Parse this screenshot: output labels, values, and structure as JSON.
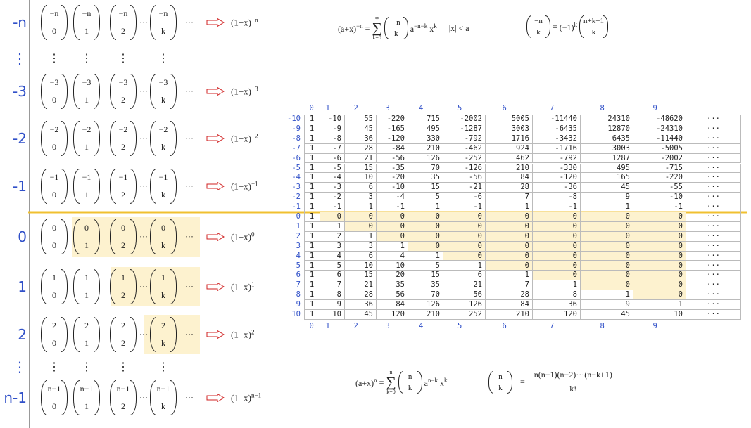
{
  "ellipsis": "···",
  "rows": [
    {
      "label": "-n",
      "entries": [
        {
          "top": "−n",
          "bottom": "0"
        },
        {
          "top": "−n",
          "bottom": "1"
        },
        {
          "top": "−n",
          "bottom": "2"
        },
        {
          "top": "−n",
          "bottom": "k"
        }
      ],
      "result": "(1+x)",
      "power": "−n"
    },
    {
      "label": "⋮"
    },
    {
      "label": "-3",
      "entries": [
        {
          "top": "−3",
          "bottom": "0"
        },
        {
          "top": "−3",
          "bottom": "1"
        },
        {
          "top": "−3",
          "bottom": "2"
        },
        {
          "top": "−3",
          "bottom": "k"
        }
      ],
      "result": "(1+x)",
      "power": "−3"
    },
    {
      "label": "-2",
      "entries": [
        {
          "top": "−2",
          "bottom": "0"
        },
        {
          "top": "−2",
          "bottom": "1"
        },
        {
          "top": "−2",
          "bottom": "2"
        },
        {
          "top": "−2",
          "bottom": "k"
        }
      ],
      "result": "(1+x)",
      "power": "−2"
    },
    {
      "label": "-1",
      "entries": [
        {
          "top": "−1",
          "bottom": "0"
        },
        {
          "top": "−1",
          "bottom": "1"
        },
        {
          "top": "−1",
          "bottom": "2"
        },
        {
          "top": "−1",
          "bottom": "k"
        }
      ],
      "result": "(1+x)",
      "power": "−1"
    },
    {
      "label": "0",
      "entries": [
        {
          "top": "0",
          "bottom": "0"
        },
        {
          "top": "0",
          "bottom": "1"
        },
        {
          "top": "0",
          "bottom": "2"
        },
        {
          "top": "0",
          "bottom": "k"
        }
      ],
      "result": "(1+x)",
      "power": "0"
    },
    {
      "label": "1",
      "entries": [
        {
          "top": "1",
          "bottom": "0"
        },
        {
          "top": "1",
          "bottom": "1"
        },
        {
          "top": "1",
          "bottom": "2"
        },
        {
          "top": "1",
          "bottom": "k"
        }
      ],
      "result": "(1+x)",
      "power": "1"
    },
    {
      "label": "2",
      "entries": [
        {
          "top": "2",
          "bottom": "0"
        },
        {
          "top": "2",
          "bottom": "1"
        },
        {
          "top": "2",
          "bottom": "2"
        },
        {
          "top": "2",
          "bottom": "k"
        }
      ],
      "result": "(1+x)",
      "power": "2"
    },
    {
      "label": "⋮"
    },
    {
      "label": "n-1",
      "entries": [
        {
          "top": "n−1",
          "bottom": "0"
        },
        {
          "top": "n−1",
          "bottom": "1"
        },
        {
          "top": "n−1",
          "bottom": "2"
        },
        {
          "top": "n−1",
          "bottom": "k"
        }
      ],
      "result": "(1+x)",
      "power": "n−1"
    }
  ],
  "neg_sum": {
    "lhs": "(a+x)",
    "lhs_pow": "−n",
    "eq": "=",
    "upper": "∞",
    "sigma": "∑",
    "lower": "k=0",
    "top": "−n",
    "bottom": "k",
    "a": "a",
    "a_pow": "−n−k",
    "x": "x",
    "x_pow": "k",
    "cond": "|x| < a"
  },
  "neg_binom": {
    "top": "−n",
    "bottom": "k",
    "eq": "=",
    "sign": "(−1)",
    "sign_pow": "k",
    "top2": "n+k−1",
    "bottom2": "k"
  },
  "pos_sum": {
    "lhs": "(a+x)",
    "lhs_pow": "n",
    "eq": "=",
    "upper": "n",
    "sigma": "∑",
    "lower": "k=0",
    "top": "n",
    "bottom": "k",
    "a": "a",
    "a_pow": "n−k",
    "x": "x",
    "x_pow": "k"
  },
  "pos_binom": {
    "top": "n",
    "bottom": "k",
    "eq": "=",
    "num": "n(n−1)(n−2)···(n−k+1)",
    "den": "k!"
  },
  "table": {
    "columns": [
      0,
      1,
      2,
      3,
      4,
      5,
      6,
      7,
      8,
      9
    ],
    "more": "···",
    "rows": [
      {
        "label": -10,
        "cells": [
          1,
          -10,
          55,
          -220,
          715,
          -2002,
          5005,
          -11440,
          24310,
          -48620
        ]
      },
      {
        "label": -9,
        "cells": [
          1,
          -9,
          45,
          -165,
          495,
          -1287,
          3003,
          -6435,
          12870,
          -24310
        ]
      },
      {
        "label": -8,
        "cells": [
          1,
          -8,
          36,
          -120,
          330,
          -792,
          1716,
          -3432,
          6435,
          -11440
        ]
      },
      {
        "label": -7,
        "cells": [
          1,
          -7,
          28,
          -84,
          210,
          -462,
          924,
          -1716,
          3003,
          -5005
        ]
      },
      {
        "label": -6,
        "cells": [
          1,
          -6,
          21,
          -56,
          126,
          -252,
          462,
          -792,
          1287,
          -2002
        ]
      },
      {
        "label": -5,
        "cells": [
          1,
          -5,
          15,
          -35,
          70,
          -126,
          210,
          -330,
          495,
          -715
        ]
      },
      {
        "label": -4,
        "cells": [
          1,
          -4,
          10,
          -20,
          35,
          -56,
          84,
          -120,
          165,
          -220
        ]
      },
      {
        "label": -3,
        "cells": [
          1,
          -3,
          6,
          -10,
          15,
          -21,
          28,
          -36,
          45,
          -55
        ]
      },
      {
        "label": -2,
        "cells": [
          1,
          -2,
          3,
          -4,
          5,
          -6,
          7,
          -8,
          9,
          -10
        ]
      },
      {
        "label": -1,
        "cells": [
          1,
          -1,
          1,
          -1,
          1,
          -1,
          1,
          -1,
          1,
          -1
        ]
      },
      {
        "label": 0,
        "cells": [
          1,
          0,
          0,
          0,
          0,
          0,
          0,
          0,
          0,
          0
        ]
      },
      {
        "label": 1,
        "cells": [
          1,
          1,
          0,
          0,
          0,
          0,
          0,
          0,
          0,
          0
        ]
      },
      {
        "label": 2,
        "cells": [
          1,
          2,
          1,
          0,
          0,
          0,
          0,
          0,
          0,
          0
        ]
      },
      {
        "label": 3,
        "cells": [
          1,
          3,
          3,
          1,
          0,
          0,
          0,
          0,
          0,
          0
        ]
      },
      {
        "label": 4,
        "cells": [
          1,
          4,
          6,
          4,
          1,
          0,
          0,
          0,
          0,
          0
        ]
      },
      {
        "label": 5,
        "cells": [
          1,
          5,
          10,
          10,
          5,
          1,
          0,
          0,
          0,
          0
        ]
      },
      {
        "label": 6,
        "cells": [
          1,
          6,
          15,
          20,
          15,
          6,
          1,
          0,
          0,
          0
        ]
      },
      {
        "label": 7,
        "cells": [
          1,
          7,
          21,
          35,
          35,
          21,
          7,
          1,
          0,
          0
        ]
      },
      {
        "label": 8,
        "cells": [
          1,
          8,
          28,
          56,
          70,
          56,
          28,
          8,
          1,
          0
        ]
      },
      {
        "label": 9,
        "cells": [
          1,
          9,
          36,
          84,
          126,
          126,
          84,
          36,
          9,
          1
        ]
      },
      {
        "label": 10,
        "cells": [
          1,
          10,
          45,
          120,
          210,
          252,
          210,
          120,
          45,
          10
        ]
      }
    ]
  }
}
